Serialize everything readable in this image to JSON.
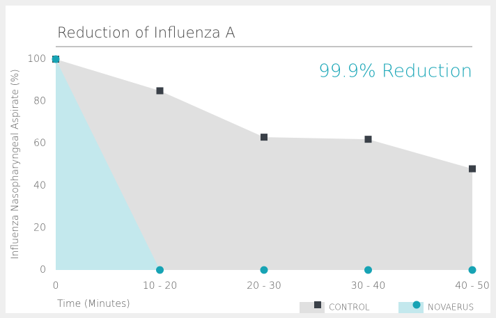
{
  "chart_data": {
    "type": "area",
    "title": "Reduction of Influenza A",
    "annotation": "99.9% Reduction",
    "y_label": "Influenza Nasopharyngeal Aspirate (%)",
    "x_label": "Time (Minutes)",
    "categories": [
      "0",
      "10 - 20",
      "20 - 30",
      "30 - 40",
      "40 - 50"
    ],
    "series": [
      {
        "name": "CONTROL",
        "color": "#e0e0e0",
        "marker_color": "#3a4048",
        "marker": "square",
        "values": [
          100,
          85,
          63,
          62,
          48
        ]
      },
      {
        "name": "NOVAERUS",
        "color": "#c3e8ed",
        "marker_color": "#17a3b4",
        "marker": "circle",
        "values": [
          100,
          0,
          0,
          0,
          0
        ]
      }
    ],
    "ylim": [
      0,
      100
    ],
    "yticks": [
      0,
      20,
      40,
      60,
      80,
      100
    ],
    "grid": false
  }
}
